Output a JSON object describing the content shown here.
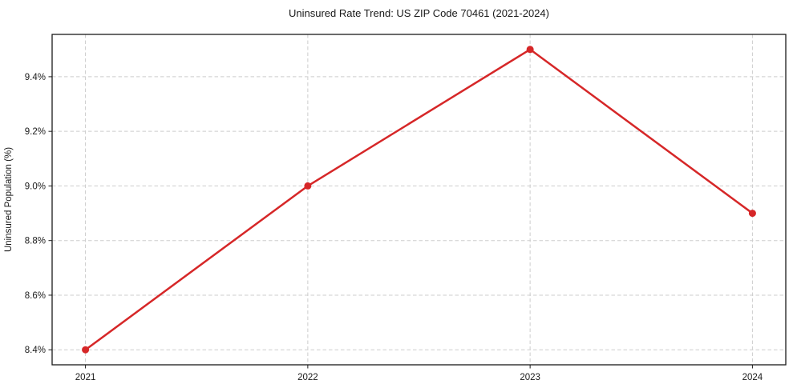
{
  "chart_data": {
    "type": "line",
    "title": "Uninsured Rate Trend: US ZIP Code 70461 (2021-2024)",
    "xlabel": "",
    "ylabel": "Uninsured Population (%)",
    "x": [
      2021,
      2022,
      2023,
      2024
    ],
    "x_tick_labels": [
      "2021",
      "2022",
      "2023",
      "2024"
    ],
    "series": [
      {
        "name": "uninsured-rate",
        "values": [
          8.4,
          9.0,
          9.5,
          8.9
        ],
        "color": "#d62728",
        "marker": "circle"
      }
    ],
    "y_ticks": [
      8.4,
      8.6,
      8.8,
      9.0,
      9.2,
      9.4
    ],
    "y_tick_labels": [
      "8.4%",
      "8.6%",
      "8.8%",
      "9.0%",
      "9.2%",
      "9.4%"
    ],
    "xlim": [
      2020.85,
      2024.15
    ],
    "ylim": [
      8.345,
      9.555
    ],
    "grid": "dashed",
    "grid_color": "#cdcdcd",
    "axis_color": "#1a1a1a",
    "text_color": "#1a1a1a",
    "background": "#ffffff",
    "legend": "none"
  }
}
